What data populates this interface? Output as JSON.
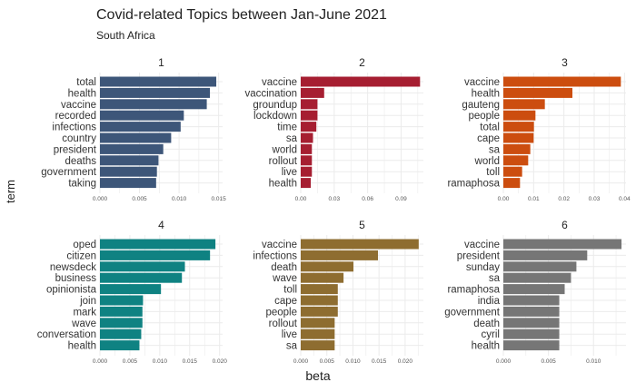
{
  "chart_data": {
    "type": "bar",
    "orientation": "horizontal",
    "title": "Covid-related Topics between Jan-June 2021",
    "subtitle": "South Africa",
    "xlabel": "beta",
    "ylabel": "term",
    "grid": true,
    "facets": [
      {
        "name": "1",
        "color": "#3d5679",
        "xlim": [
          0,
          0.0155
        ],
        "ticks": [
          "0.000",
          "0.005",
          "0.010",
          "0.015"
        ],
        "tick_values": [
          0,
          0.005,
          0.01,
          0.015
        ],
        "categories": [
          "total",
          "health",
          "vaccine",
          "recorded",
          "infections",
          "country",
          "president",
          "deaths",
          "government",
          "taking"
        ],
        "values": [
          0.0147,
          0.0139,
          0.0135,
          0.0106,
          0.0102,
          0.009,
          0.008,
          0.0074,
          0.0072,
          0.0071
        ]
      },
      {
        "name": "2",
        "color": "#a61e31",
        "xlim": [
          0,
          0.11
        ],
        "ticks": [
          "0.00",
          "0.03",
          "0.06",
          "0.09"
        ],
        "tick_values": [
          0,
          0.03,
          0.06,
          0.09
        ],
        "categories": [
          "vaccine",
          "vaccination",
          "groundup",
          "lockdown",
          "time",
          "sa",
          "world",
          "rollout",
          "live",
          "health"
        ],
        "values": [
          0.107,
          0.021,
          0.015,
          0.015,
          0.014,
          0.011,
          0.01,
          0.01,
          0.01,
          0.009
        ]
      },
      {
        "name": "3",
        "color": "#cc4d0f",
        "xlim": [
          0,
          0.0405
        ],
        "ticks": [
          "0.00",
          "0.01",
          "0.02",
          "0.03",
          "0.04"
        ],
        "tick_values": [
          0,
          0.01,
          0.02,
          0.03,
          0.04
        ],
        "categories": [
          "vaccine",
          "health",
          "gauteng",
          "people",
          "total",
          "cape",
          "sa",
          "world",
          "toll",
          "ramaphosa"
        ],
        "values": [
          0.0388,
          0.0228,
          0.0137,
          0.0106,
          0.0101,
          0.01,
          0.0089,
          0.0082,
          0.0062,
          0.0055
        ]
      },
      {
        "name": "4",
        "color": "#0f8282",
        "xlim": [
          0,
          0.0205
        ],
        "ticks": [
          "0.000",
          "0.005",
          "0.010",
          "0.015",
          "0.020"
        ],
        "tick_values": [
          0,
          0.005,
          0.01,
          0.015,
          0.02
        ],
        "categories": [
          "oped",
          "citizen",
          "newsdeck",
          "business",
          "opinionista",
          "join",
          "mark",
          "wave",
          "conversation",
          "health"
        ],
        "values": [
          0.0193,
          0.0184,
          0.0142,
          0.0137,
          0.0102,
          0.0072,
          0.0071,
          0.0071,
          0.0069,
          0.0066
        ]
      },
      {
        "name": "5",
        "color": "#8e6d30",
        "xlim": [
          0,
          0.0235
        ],
        "ticks": [
          "0.000",
          "0.005",
          "0.010",
          "0.015",
          "0.020"
        ],
        "tick_values": [
          0,
          0.005,
          0.01,
          0.015,
          0.02
        ],
        "categories": [
          "vaccine",
          "infections",
          "death",
          "wave",
          "toll",
          "cape",
          "people",
          "rollout",
          "live",
          "sa"
        ],
        "values": [
          0.0226,
          0.0148,
          0.0101,
          0.0082,
          0.0071,
          0.0071,
          0.0071,
          0.0065,
          0.0065,
          0.0065
        ]
      },
      {
        "name": "6",
        "color": "#767676",
        "xlim": [
          0,
          0.0136
        ],
        "ticks": [
          "0.000",
          "0.005",
          "0.010"
        ],
        "tick_values": [
          0,
          0.005,
          0.01
        ],
        "categories": [
          "vaccine",
          "president",
          "sunday",
          "sa",
          "ramaphosa",
          "india",
          "government",
          "death",
          "cyril",
          "health"
        ],
        "values": [
          0.0131,
          0.0093,
          0.0081,
          0.0075,
          0.0068,
          0.0062,
          0.0062,
          0.0062,
          0.0062,
          0.0062
        ]
      }
    ]
  }
}
